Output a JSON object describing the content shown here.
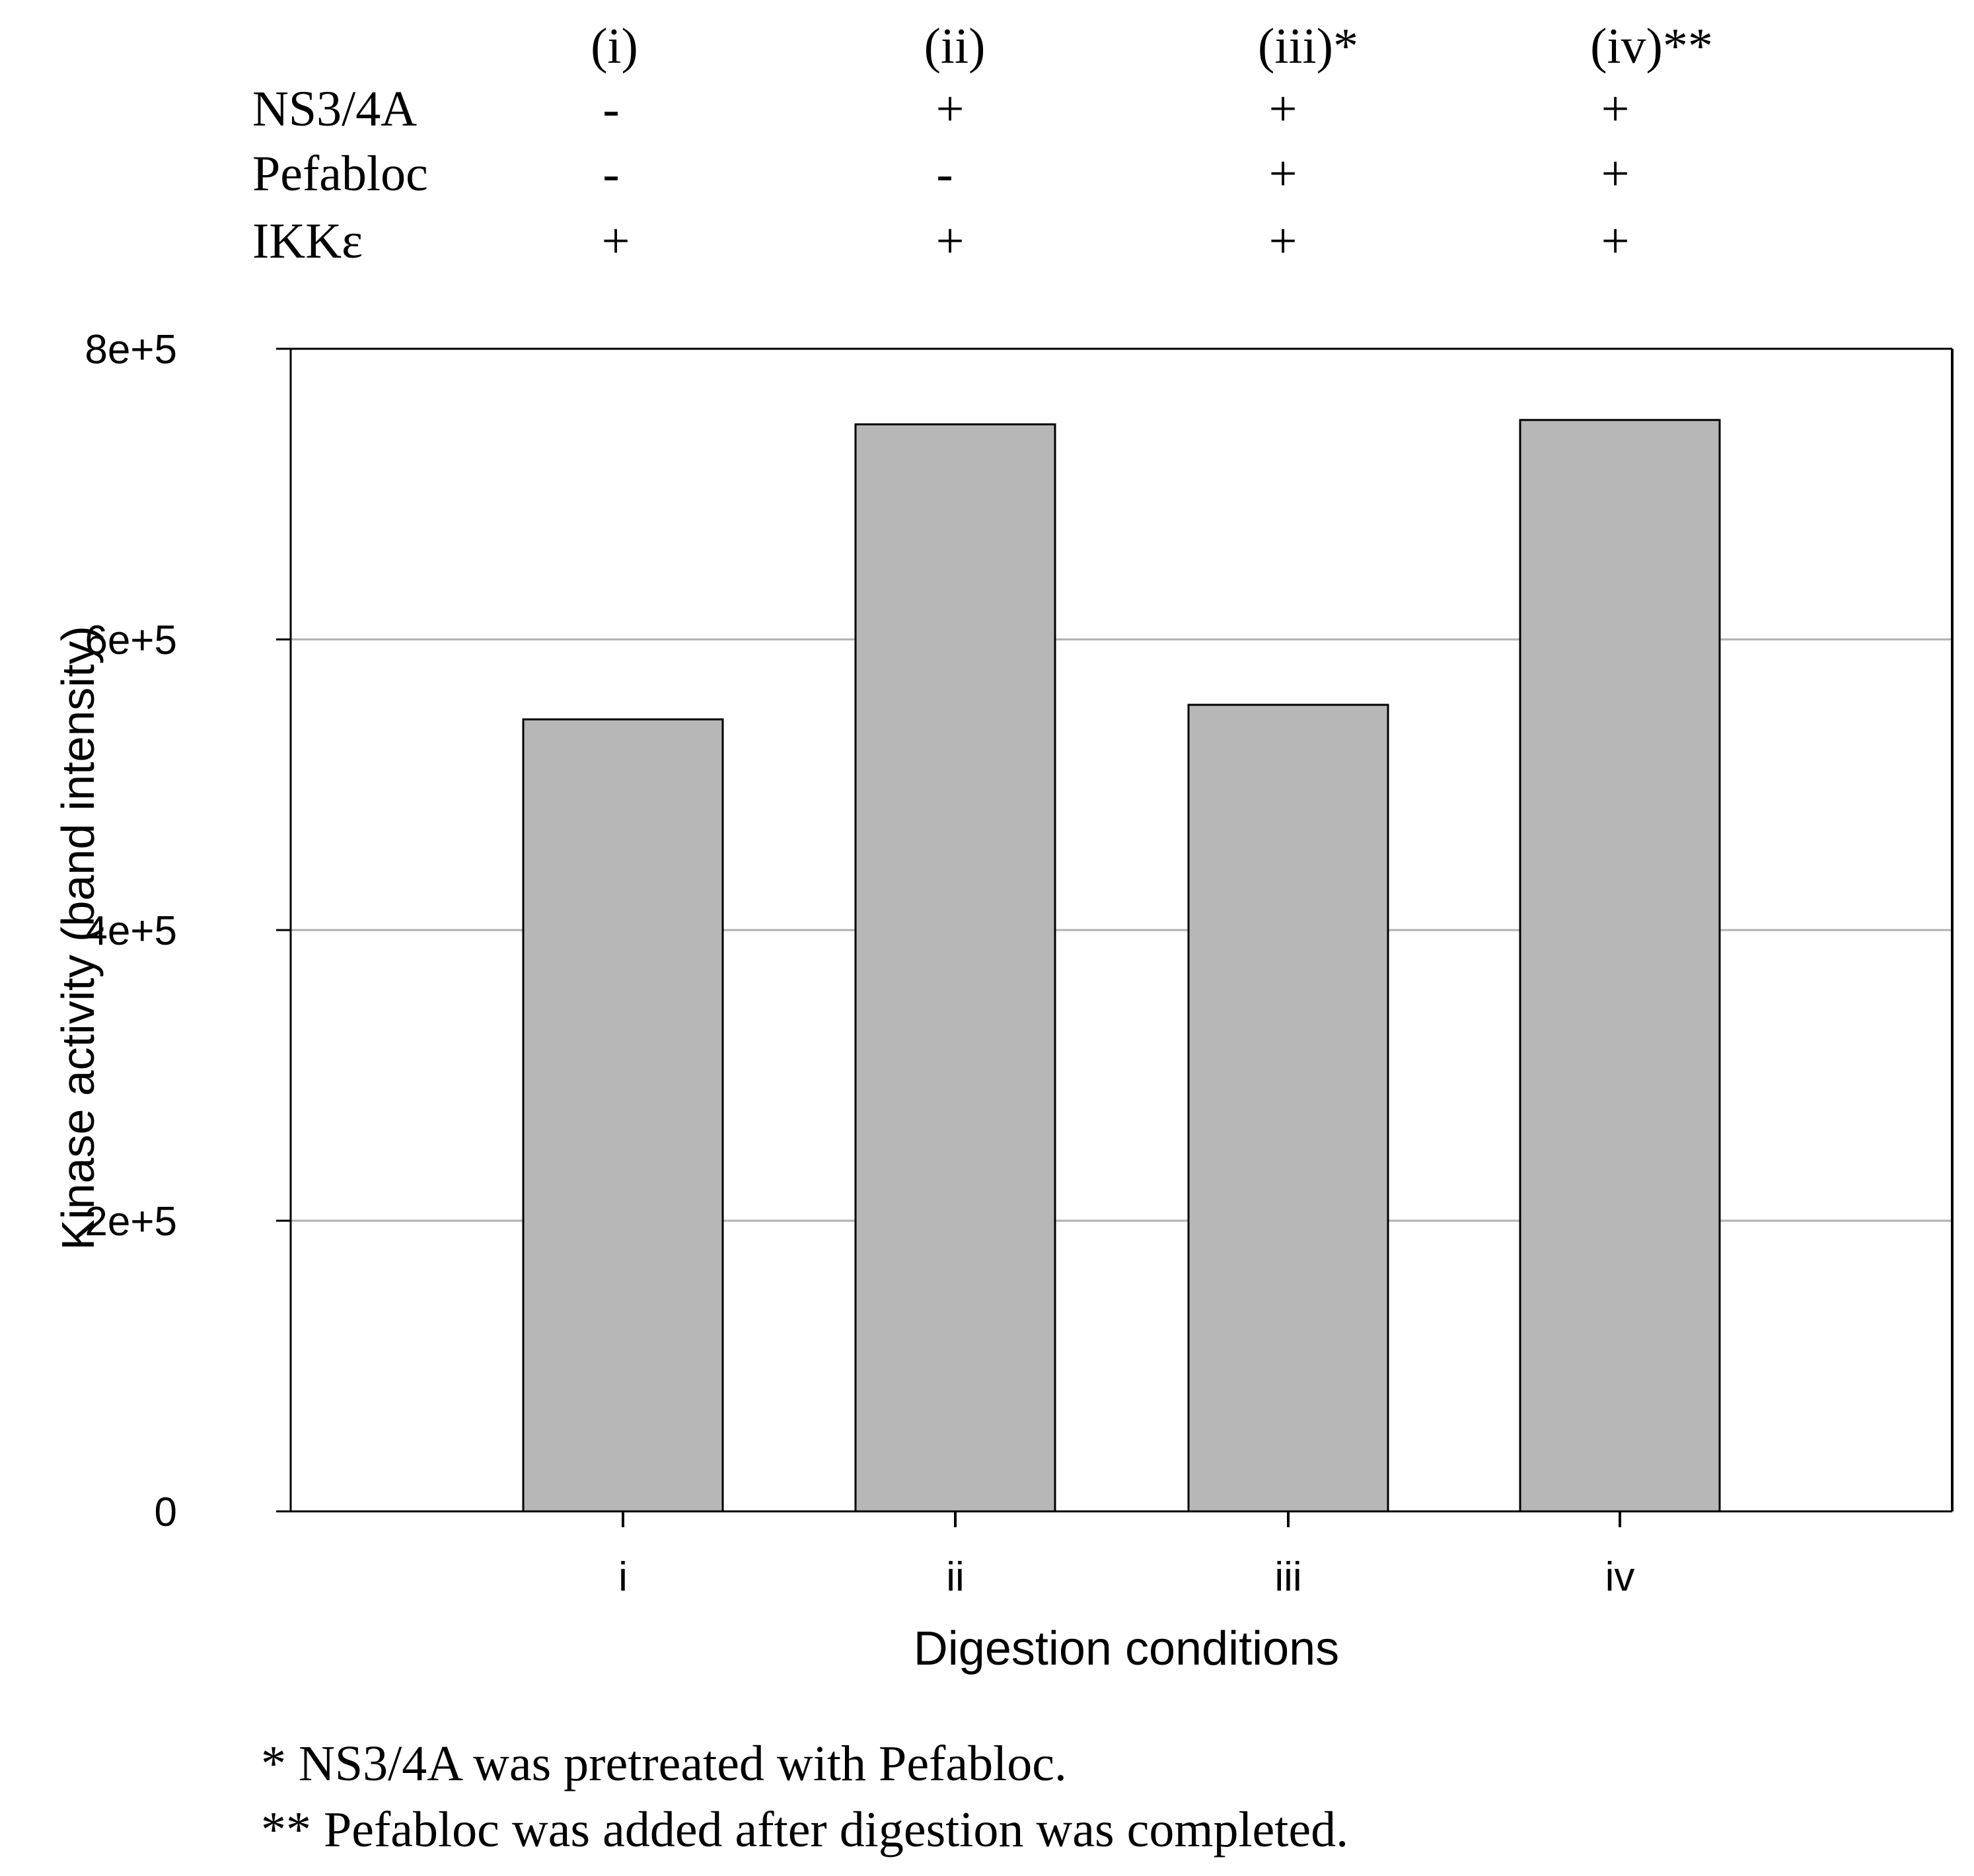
{
  "conditions_table": {
    "column_headers": [
      "(i)",
      "(ii)",
      "(iii)*",
      "(iv)**"
    ],
    "rows": [
      {
        "label": "NS3/4A",
        "values": [
          "-",
          "+",
          "+",
          "+"
        ]
      },
      {
        "label": "Pefabloc",
        "values": [
          "-",
          "-",
          "+",
          "+"
        ]
      },
      {
        "label": "IKKε",
        "values": [
          "+",
          "+",
          "+",
          "+"
        ]
      }
    ]
  },
  "chart_data": {
    "type": "bar",
    "categories": [
      "i",
      "ii",
      "iii",
      "iv"
    ],
    "values": [
      545000,
      748000,
      555000,
      751000
    ],
    "title": "",
    "xlabel": "Digestion conditions",
    "ylabel": "Kinase activity (band intensity)",
    "ylim": [
      0,
      800000
    ],
    "yticks": [
      0,
      200000,
      400000,
      600000,
      800000
    ],
    "ytick_labels": [
      "0",
      "2e+5",
      "4e+5",
      "6e+5",
      "8e+5"
    ],
    "grid": true,
    "colors": {
      "bar_fill": "#b7b7b7",
      "bar_stroke": "#000000",
      "grid": "#b0b0b0"
    }
  },
  "footnotes": [
    "* NS3/4A was pretreated with Pefabloc.",
    "** Pefabloc was added after digestion was completed."
  ]
}
